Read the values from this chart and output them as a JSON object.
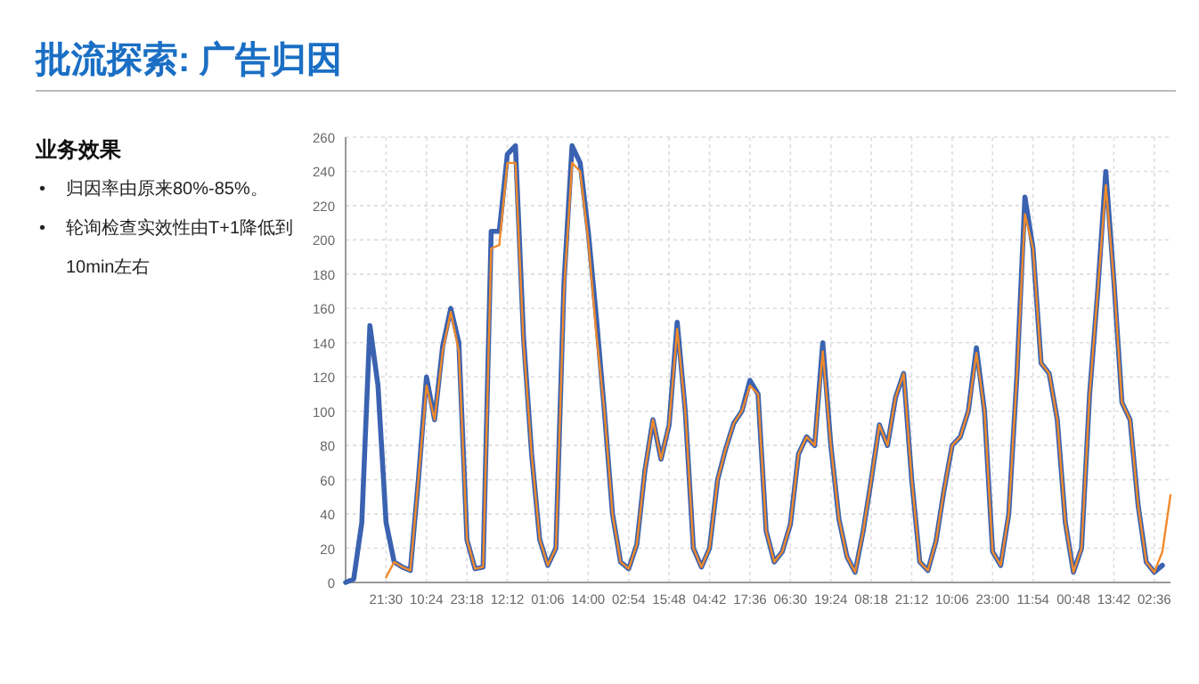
{
  "chart_data": {
    "type": "line",
    "title": "批流探索: 广告归因",
    "subtitle": "业务效果",
    "annotations": [
      "•归因率由原来80%-85%。",
      "•轮询检查实效性由T+1降低到10min左右"
    ],
    "categories": [
      null,
      null,
      null,
      null,
      null,
      "21:30",
      null,
      null,
      null,
      null,
      "10:24",
      null,
      null,
      null,
      null,
      "23:18",
      null,
      null,
      null,
      null,
      "12:12",
      null,
      null,
      null,
      null,
      "01:06",
      null,
      null,
      null,
      null,
      "14:00",
      null,
      null,
      null,
      null,
      "02:54",
      null,
      null,
      null,
      null,
      "15:48",
      null,
      null,
      null,
      null,
      "04:42",
      null,
      null,
      null,
      null,
      "17:36",
      null,
      null,
      null,
      null,
      "06:30",
      null,
      null,
      null,
      null,
      "19:24",
      null,
      null,
      null,
      null,
      "08:18",
      null,
      null,
      null,
      null,
      "21:12",
      null,
      null,
      null,
      null,
      "10:06",
      null,
      null,
      null,
      null,
      "23:00",
      null,
      null,
      null,
      null,
      "11:54",
      null,
      null,
      null,
      null,
      "00:48",
      null,
      null,
      null,
      null,
      "13:42",
      null,
      null,
      null,
      null,
      "02:36",
      null,
      null
    ],
    "series": [
      {
        "color": "#3a62b0",
        "values": [
          0,
          2,
          35,
          150,
          115,
          35,
          12,
          9,
          7,
          60,
          120,
          95,
          138,
          160,
          140,
          25,
          8,
          9,
          205,
          205,
          250,
          255,
          143,
          75,
          25,
          10,
          20,
          175,
          255,
          245,
          205,
          155,
          100,
          40,
          12,
          8,
          22,
          65,
          95,
          72,
          92,
          152,
          100,
          20,
          9,
          20,
          60,
          78,
          93,
          100,
          118,
          110,
          30,
          12,
          18,
          34,
          75,
          85,
          80,
          140,
          80,
          37,
          15,
          6,
          30,
          60,
          92,
          80,
          108,
          122,
          60,
          12,
          7,
          24,
          54,
          80,
          85,
          100,
          137,
          100,
          18,
          10,
          40,
          120,
          225,
          195,
          128,
          122,
          95,
          35,
          6,
          20,
          110,
          170,
          240,
          176,
          105,
          95,
          45,
          12,
          6,
          10,
          null
        ]
      },
      {
        "color": "#f08a2c",
        "values": [
          null,
          null,
          null,
          null,
          null,
          3,
          12,
          9,
          7,
          60,
          115,
          95,
          135,
          158,
          135,
          25,
          8,
          9,
          195,
          197,
          245,
          245,
          140,
          75,
          25,
          10,
          20,
          170,
          245,
          240,
          200,
          145,
          100,
          40,
          12,
          8,
          22,
          65,
          95,
          72,
          92,
          148,
          100,
          20,
          9,
          20,
          60,
          78,
          93,
          100,
          115,
          110,
          30,
          12,
          18,
          34,
          75,
          85,
          80,
          135,
          80,
          37,
          15,
          6,
          30,
          60,
          92,
          80,
          108,
          122,
          60,
          12,
          7,
          24,
          54,
          80,
          85,
          100,
          134,
          100,
          18,
          10,
          40,
          120,
          215,
          195,
          128,
          122,
          95,
          35,
          6,
          20,
          110,
          170,
          232,
          176,
          105,
          95,
          45,
          12,
          6,
          18,
          51
        ]
      }
    ],
    "ylim": [
      0,
      260
    ],
    "yticks": [
      0,
      20,
      40,
      60,
      80,
      100,
      120,
      140,
      160,
      180,
      200,
      220,
      240,
      260
    ],
    "grid": true
  }
}
